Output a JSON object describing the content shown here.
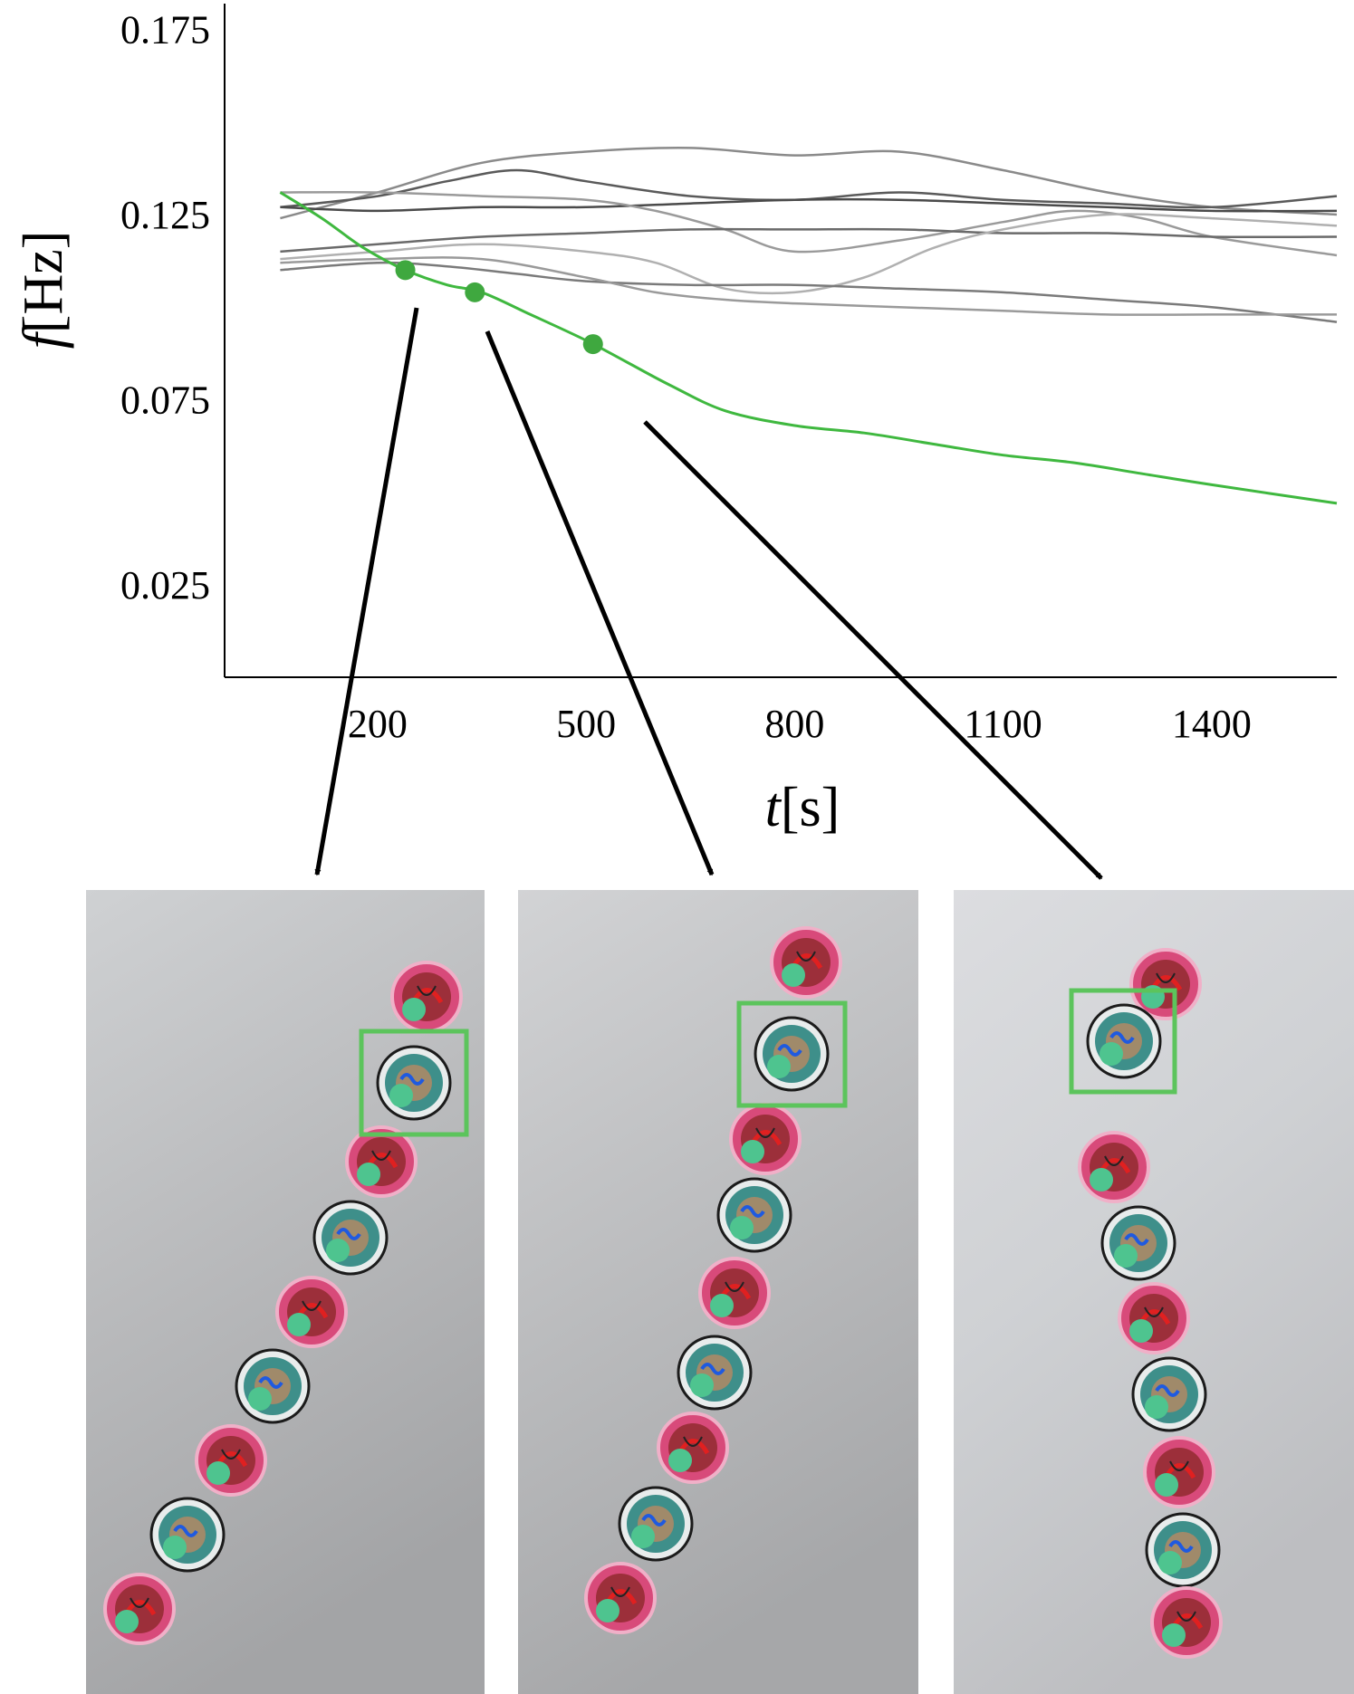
{
  "chart_data": {
    "type": "line",
    "xlabel_symbol": "t",
    "xlabel_unit": "[s]",
    "ylabel_symbol": "f",
    "ylabel_unit": "[Hz]",
    "xlim": [
      -20,
      1580
    ],
    "ylim": [
      0.0,
      0.182
    ],
    "xticks": [
      200,
      500,
      800,
      1100,
      1400
    ],
    "yticks": [
      0.025,
      0.075,
      0.125,
      0.175
    ],
    "xtick_labels": [
      "200",
      "500",
      "800",
      "1100",
      "1400"
    ],
    "ytick_labels": [
      "0.025",
      "0.075",
      "0.125",
      "0.175"
    ],
    "grid": false,
    "series": [
      {
        "color": "#8a8a8a",
        "x": [
          60,
          200,
          350,
          500,
          650,
          800,
          950,
          1100,
          1250,
          1400,
          1580
        ],
        "y": [
          0.124,
          0.131,
          0.139,
          0.142,
          0.143,
          0.141,
          0.142,
          0.137,
          0.131,
          0.127,
          0.125
        ]
      },
      {
        "color": "#5a5a5a",
        "x": [
          60,
          200,
          300,
          400,
          500,
          650,
          800,
          950,
          1100,
          1250,
          1400,
          1580
        ],
        "y": [
          0.127,
          0.13,
          0.134,
          0.137,
          0.134,
          0.13,
          0.129,
          0.131,
          0.129,
          0.128,
          0.127,
          0.13
        ]
      },
      {
        "color": "#4a4a4a",
        "x": [
          60,
          200,
          350,
          500,
          650,
          800,
          950,
          1100,
          1250,
          1400,
          1580
        ],
        "y": [
          0.127,
          0.126,
          0.127,
          0.127,
          0.128,
          0.129,
          0.129,
          0.128,
          0.127,
          0.126,
          0.126
        ]
      },
      {
        "color": "#9a9a9a",
        "x": [
          60,
          200,
          350,
          500,
          600,
          700,
          800,
          950,
          1100,
          1200,
          1300,
          1400,
          1580
        ],
        "y": [
          0.131,
          0.131,
          0.13,
          0.129,
          0.126,
          0.121,
          0.115,
          0.118,
          0.123,
          0.126,
          0.124,
          0.119,
          0.114
        ]
      },
      {
        "color": "#6a6a6a",
        "x": [
          60,
          200,
          350,
          500,
          650,
          800,
          950,
          1100,
          1250,
          1400,
          1580
        ],
        "y": [
          0.115,
          0.117,
          0.119,
          0.12,
          0.121,
          0.121,
          0.121,
          0.12,
          0.12,
          0.119,
          0.119
        ]
      },
      {
        "color": "#b0b0b0",
        "x": [
          60,
          200,
          350,
          500,
          600,
          700,
          800,
          900,
          1000,
          1100,
          1250,
          1400,
          1580
        ],
        "y": [
          0.113,
          0.115,
          0.117,
          0.115,
          0.112,
          0.105,
          0.104,
          0.108,
          0.116,
          0.121,
          0.125,
          0.124,
          0.122
        ]
      },
      {
        "color": "#7a7a7a",
        "x": [
          60,
          200,
          300,
          400,
          500,
          650,
          800,
          950,
          1100,
          1250,
          1400,
          1580
        ],
        "y": [
          0.11,
          0.112,
          0.111,
          0.109,
          0.107,
          0.106,
          0.106,
          0.105,
          0.104,
          0.102,
          0.1,
          0.096
        ]
      },
      {
        "color": "#9a9a9a",
        "x": [
          60,
          200,
          350,
          500,
          600,
          700,
          800,
          950,
          1100,
          1250,
          1400,
          1580
        ],
        "y": [
          0.112,
          0.113,
          0.113,
          0.108,
          0.104,
          0.102,
          0.101,
          0.1,
          0.099,
          0.098,
          0.098,
          0.098
        ]
      },
      {
        "color": "#3fb83f",
        "x": [
          60,
          120,
          180,
          240,
          300,
          350,
          420,
          500,
          560,
          620,
          700,
          800,
          900,
          1000,
          1100,
          1200,
          1300,
          1400,
          1580
        ],
        "y": [
          0.131,
          0.124,
          0.116,
          0.11,
          0.106,
          0.104,
          0.098,
          0.091,
          0.085,
          0.079,
          0.072,
          0.068,
          0.066,
          0.063,
          0.06,
          0.058,
          0.055,
          0.052,
          0.047
        ]
      }
    ],
    "highlight_points": [
      {
        "x": 240,
        "y": 0.11
      },
      {
        "x": 340,
        "y": 0.104
      },
      {
        "x": 510,
        "y": 0.09
      }
    ],
    "highlight_color": "#3fa83f"
  },
  "photos": {
    "count": 3,
    "highlight_box_color": "#5cc45c",
    "module_colors": {
      "pink": "#d84a7a",
      "teal": "#3e8f8a",
      "marker": "#4ec48f"
    }
  }
}
